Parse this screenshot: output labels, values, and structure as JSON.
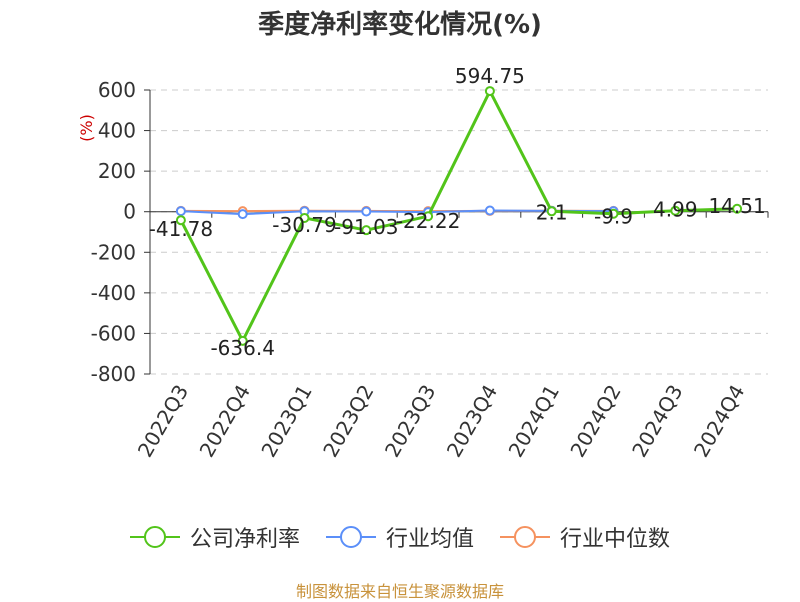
{
  "chart_data": {
    "type": "line",
    "title": "季度净利率变化情况(%)",
    "ylabel": "(%)",
    "xlabel": "",
    "categories": [
      "2022Q3",
      "2022Q4",
      "2023Q1",
      "2023Q2",
      "2023Q3",
      "2023Q4",
      "2024Q1",
      "2024Q2",
      "2024Q3",
      "2024Q4"
    ],
    "ylim": [
      -800,
      600
    ],
    "yticks": [
      600,
      400,
      200,
      0,
      -200,
      -400,
      -600,
      -800
    ],
    "grid": true,
    "legend_position": "bottom",
    "series": [
      {
        "name": "公司净利率",
        "color": "#52c41a",
        "values": [
          -41.78,
          -636.4,
          -30.79,
          -91.03,
          -22.22,
          594.75,
          2.1,
          -9.9,
          4.99,
          14.51
        ],
        "labels": [
          "-41.78",
          "-636.4",
          "-30.79",
          "-91.03",
          "-22.22",
          "594.75",
          "2.1",
          "-9.9",
          "4.99",
          "14.51"
        ]
      },
      {
        "name": "行业均值",
        "color": "#5b8ff9",
        "values": [
          3,
          -12,
          2,
          1,
          -2,
          6,
          4,
          3,
          null,
          null
        ]
      },
      {
        "name": "行业中位数",
        "color": "#f5925f",
        "values": [
          4,
          3,
          5,
          4,
          3,
          4,
          5,
          4,
          null,
          null
        ]
      }
    ]
  },
  "source": "制图数据来自恒生聚源数据库"
}
